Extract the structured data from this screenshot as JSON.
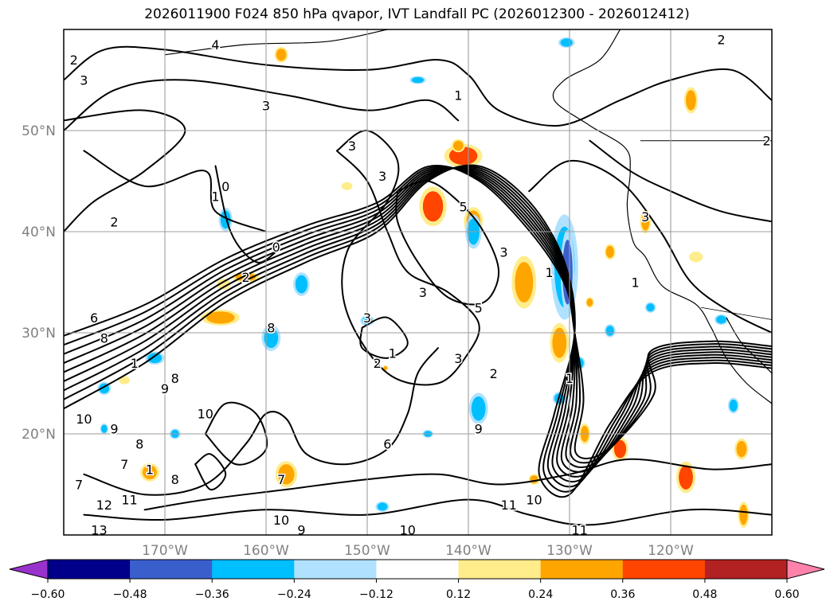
{
  "title": "2026011900 F024 850 hPa qvapor, IVT Landfall PC (2026012300 - 2026012412)",
  "chart_data": {
    "type": "contour_map",
    "title": "2026011900 F024 850 hPa qvapor, IVT Landfall PC (2026012300 - 2026012412)",
    "map": {
      "lon_range": [
        -180,
        -110
      ],
      "lat_range": [
        10,
        60
      ],
      "lon_ticks": [
        -170,
        -160,
        -150,
        -140,
        -130,
        -120
      ],
      "lon_tick_labels": [
        "170°W",
        "160°W",
        "150°W",
        "140°W",
        "130°W",
        "120°W"
      ],
      "lat_ticks": [
        20,
        30,
        40,
        50
      ],
      "lat_tick_labels": [
        "20°N",
        "30°N",
        "40°N",
        "50°N"
      ],
      "grid": true
    },
    "colorbar": {
      "orientation": "horizontal",
      "extend": "both",
      "boundaries": [
        -0.72,
        -0.6,
        -0.48,
        -0.36,
        -0.24,
        -0.12,
        0.12,
        0.24,
        0.36,
        0.48,
        0.6,
        0.72
      ],
      "tick_values": [
        -0.6,
        -0.48,
        -0.36,
        -0.24,
        -0.12,
        0.12,
        0.24,
        0.36,
        0.48,
        0.6
      ],
      "tick_labels": [
        "−0.60",
        "−0.48",
        "−0.36",
        "−0.24",
        "−0.12",
        "0.12",
        "0.24",
        "0.36",
        "0.48",
        "0.60"
      ],
      "colors": [
        "#9932cc",
        "#00008b",
        "#3a5fcd",
        "#00bfff",
        "#b0e2ff",
        "#ffffff",
        "#ffec8b",
        "#ffa500",
        "#ff4500",
        "#b22222",
        "#ff82ab"
      ]
    },
    "contour_labels": [
      {
        "text": "2",
        "lon": -179,
        "lat": 57
      },
      {
        "text": "3",
        "lon": -178,
        "lat": 55
      },
      {
        "text": "4",
        "lon": -165,
        "lat": 58.5
      },
      {
        "text": "3",
        "lon": -160,
        "lat": 52.5
      },
      {
        "text": "1",
        "lon": -141,
        "lat": 53.5
      },
      {
        "text": "2",
        "lon": -115,
        "lat": 59
      },
      {
        "text": "2",
        "lon": -110.5,
        "lat": 49
      },
      {
        "text": "2",
        "lon": -175,
        "lat": 41
      },
      {
        "text": "0",
        "lon": -164,
        "lat": 44.5
      },
      {
        "text": "1",
        "lon": -165,
        "lat": 43.5
      },
      {
        "text": "0",
        "lon": -159,
        "lat": 38.5
      },
      {
        "text": "2",
        "lon": -162,
        "lat": 35.5
      },
      {
        "text": "3",
        "lon": -151.5,
        "lat": 48.5
      },
      {
        "text": "3",
        "lon": -148.5,
        "lat": 45.5
      },
      {
        "text": "5",
        "lon": -140.5,
        "lat": 42.5
      },
      {
        "text": "3",
        "lon": -136.5,
        "lat": 38
      },
      {
        "text": "3",
        "lon": -144.5,
        "lat": 34
      },
      {
        "text": "5",
        "lon": -139,
        "lat": 32.5
      },
      {
        "text": "3",
        "lon": -150,
        "lat": 31.5
      },
      {
        "text": "1",
        "lon": -147.5,
        "lat": 28
      },
      {
        "text": "2",
        "lon": -149,
        "lat": 27
      },
      {
        "text": "3",
        "lon": -141,
        "lat": 27.5
      },
      {
        "text": "2",
        "lon": -137.5,
        "lat": 26
      },
      {
        "text": "1",
        "lon": -132,
        "lat": 36
      },
      {
        "text": "1",
        "lon": -130,
        "lat": 25.5
      },
      {
        "text": "3",
        "lon": -122.5,
        "lat": 41.5
      },
      {
        "text": "1",
        "lon": -123.5,
        "lat": 35
      },
      {
        "text": "6",
        "lon": -177,
        "lat": 31.5
      },
      {
        "text": "8",
        "lon": -176,
        "lat": 29.5
      },
      {
        "text": "1",
        "lon": -173,
        "lat": 27
      },
      {
        "text": "9",
        "lon": -170,
        "lat": 24.5
      },
      {
        "text": "8",
        "lon": -169,
        "lat": 25.5
      },
      {
        "text": "8",
        "lon": -159.5,
        "lat": 30.5
      },
      {
        "text": "10",
        "lon": -166,
        "lat": 22
      },
      {
        "text": "10",
        "lon": -178,
        "lat": 21.5
      },
      {
        "text": "9",
        "lon": -175,
        "lat": 20.5
      },
      {
        "text": "8",
        "lon": -172.5,
        "lat": 19
      },
      {
        "text": "7",
        "lon": -174,
        "lat": 17
      },
      {
        "text": "1",
        "lon": -171.5,
        "lat": 16.5
      },
      {
        "text": "8",
        "lon": -169,
        "lat": 15.5
      },
      {
        "text": "7",
        "lon": -178.5,
        "lat": 15
      },
      {
        "text": "12",
        "lon": -176,
        "lat": 13
      },
      {
        "text": "11",
        "lon": -173.5,
        "lat": 13.5
      },
      {
        "text": "13",
        "lon": -176.5,
        "lat": 10.5
      },
      {
        "text": "7",
        "lon": -158.5,
        "lat": 15.5
      },
      {
        "text": "9",
        "lon": -139,
        "lat": 20.5
      },
      {
        "text": "6",
        "lon": -148,
        "lat": 19
      },
      {
        "text": "10",
        "lon": -158.5,
        "lat": 11.5
      },
      {
        "text": "9",
        "lon": -156.5,
        "lat": 10.5
      },
      {
        "text": "10",
        "lon": -146,
        "lat": 10.5
      },
      {
        "text": "11",
        "lon": -136,
        "lat": 13
      },
      {
        "text": "10",
        "lon": -133.5,
        "lat": 13.5
      },
      {
        "text": "11",
        "lon": -129,
        "lat": 10.5
      }
    ]
  }
}
